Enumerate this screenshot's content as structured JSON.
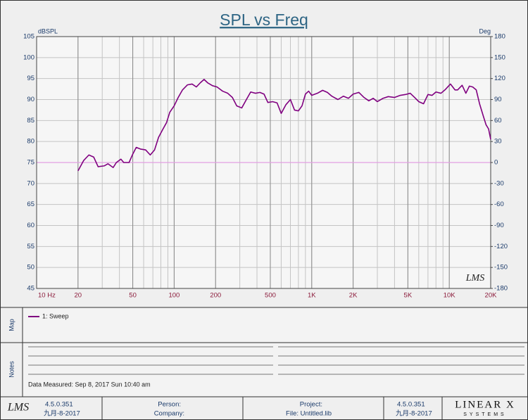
{
  "chart_data": {
    "type": "line",
    "title": "SPL vs Freq",
    "y_label": "dBSPL",
    "y2_label": "Deg",
    "logo": "LMS",
    "x": [
      20,
      22,
      24,
      26,
      28,
      31,
      33,
      36,
      38,
      41,
      43,
      47,
      50,
      53,
      57,
      62,
      67,
      72,
      77,
      83,
      88,
      93,
      100,
      107,
      115,
      125,
      135,
      145,
      155,
      165,
      175,
      190,
      205,
      225,
      245,
      265,
      285,
      310,
      335,
      360,
      390,
      420,
      450,
      480,
      520,
      560,
      600,
      650,
      700,
      750,
      800,
      850,
      900,
      950,
      1000,
      1100,
      1200,
      1300,
      1400,
      1550,
      1700,
      1850,
      2000,
      2200,
      2400,
      2600,
      2800,
      3000,
      3300,
      3600,
      4000,
      4400,
      4800,
      5200,
      5600,
      6000,
      6500,
      7000,
      7500,
      8000,
      8700,
      9300,
      10200,
      11000,
      11500,
      12400,
      13200,
      14000,
      14800,
      15700,
      16600,
      17700,
      18500,
      19300,
      20000
    ],
    "series": [
      {
        "name": "1: Sweep",
        "color": "#800080",
        "values": [
          73,
          75.5,
          76.8,
          76.3,
          74,
          74.2,
          74.7,
          73.8,
          75,
          75.8,
          75,
          75,
          77,
          78.6,
          78.2,
          78,
          76.8,
          78,
          81,
          83,
          84.5,
          87,
          88.5,
          90.5,
          92.3,
          93.5,
          93.7,
          93,
          94,
          94.8,
          94,
          93.3,
          93,
          92,
          91.5,
          90.5,
          88.5,
          88,
          90,
          91.8,
          91.5,
          91.7,
          91.3,
          89.3,
          89.5,
          89.2,
          86.7,
          88.8,
          90,
          87.5,
          87.3,
          88.5,
          91.3,
          92,
          91,
          91.5,
          92.2,
          91.7,
          90.8,
          90,
          90.8,
          90.3,
          91.3,
          91.7,
          90.5,
          89.7,
          90.3,
          89.5,
          90.3,
          90.7,
          90.5,
          91,
          91.2,
          91.5,
          90.5,
          89.5,
          89,
          91.2,
          91,
          91.8,
          91.5,
          92.3,
          93.7,
          92.3,
          92.3,
          93.4,
          91.5,
          93.2,
          93,
          92.3,
          89,
          86,
          84,
          83,
          80.5
        ]
      }
    ],
    "xlim": [
      10,
      20000
    ],
    "xscale": "log",
    "xticks": [
      {
        "value": 10,
        "label": "10 Hz"
      },
      20,
      50,
      100,
      200,
      500,
      {
        "value": 1000,
        "label": "1K"
      },
      {
        "value": 2000,
        "label": "2K"
      },
      {
        "value": 5000,
        "label": "5K"
      },
      {
        "value": 10000,
        "label": "10K"
      },
      {
        "value": 20000,
        "label": "20K"
      }
    ],
    "ylim": [
      45,
      105
    ],
    "yticks": [
      45,
      50,
      55,
      60,
      65,
      70,
      75,
      80,
      85,
      90,
      95,
      100,
      105
    ],
    "y2lim": [
      -180,
      180
    ],
    "y2ticks": [
      -180,
      -150,
      -120,
      -90,
      -60,
      -30,
      0,
      30,
      60,
      90,
      120,
      150,
      180
    ],
    "grid": true,
    "reference_lines": [
      {
        "axis": "y2",
        "value": 0,
        "color": "#e2a0e2"
      }
    ]
  },
  "panels": {
    "map_label": "Map",
    "notes_label": "Notes",
    "data_measured": "Data Measured: Sep 8, 2017 Sun 10:40 am"
  },
  "footer": {
    "logo": "LMS",
    "version_left": "4.5.0.351",
    "date_left": "九月-8-2017",
    "person": "Person:",
    "company": "Company:",
    "project": "Project:",
    "file": "File: Untitled.lib",
    "version_right": "4.5.0.351",
    "date_right": "九月-8-2017",
    "brand": "LINEAR X",
    "brand_sub": "SYSTEMS"
  }
}
